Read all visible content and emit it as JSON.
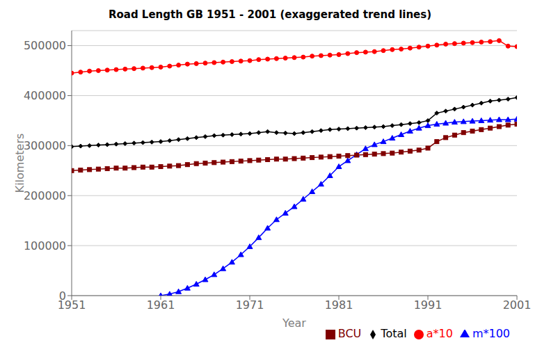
{
  "chart_data": {
    "type": "line",
    "title": "Road Length GB 1951 - 2001 (exaggerated trend lines)",
    "xlabel": "Year",
    "ylabel": "Kilometers",
    "x": [
      1951,
      1952,
      1953,
      1954,
      1955,
      1956,
      1957,
      1958,
      1959,
      1960,
      1961,
      1962,
      1963,
      1964,
      1965,
      1966,
      1967,
      1968,
      1969,
      1970,
      1971,
      1972,
      1973,
      1974,
      1975,
      1976,
      1977,
      1978,
      1979,
      1980,
      1981,
      1982,
      1983,
      1984,
      1985,
      1986,
      1987,
      1988,
      1989,
      1990,
      1991,
      1992,
      1993,
      1994,
      1995,
      1996,
      1997,
      1998,
      1999,
      2000,
      2001
    ],
    "series": [
      {
        "name": "Total",
        "color": "#000000",
        "marker": "diamond",
        "values": [
          298000,
          299000,
          300000,
          301000,
          302000,
          303000,
          304000,
          305000,
          306000,
          307000,
          308000,
          310000,
          312000,
          314000,
          316000,
          318000,
          320000,
          321000,
          322000,
          323000,
          324000,
          326000,
          328000,
          326000,
          325000,
          324000,
          326000,
          328000,
          330000,
          332000,
          333000,
          334000,
          335000,
          336000,
          337000,
          338000,
          340000,
          342000,
          344000,
          346000,
          350000,
          365000,
          369000,
          373000,
          377000,
          381000,
          385000,
          389000,
          391000,
          393000,
          396000
        ]
      },
      {
        "name": "a*10",
        "color": "#FF0000",
        "marker": "circle",
        "values": [
          445000,
          447000,
          449000,
          450000,
          451000,
          452000,
          453000,
          454000,
          455000,
          456000,
          457000,
          459000,
          461000,
          463000,
          464000,
          465000,
          466000,
          467000,
          468000,
          469000,
          470000,
          472000,
          473000,
          474000,
          475000,
          476000,
          477000,
          479000,
          480000,
          481000,
          482000,
          484000,
          486000,
          487000,
          488000,
          490000,
          492000,
          493000,
          495000,
          497000,
          499000,
          501000,
          503000,
          504000,
          505000,
          506000,
          507000,
          508000,
          510000,
          499000,
          498000
        ]
      },
      {
        "name": "m*100",
        "color": "#0000FF",
        "marker": "triangle",
        "values": [
          null,
          null,
          null,
          null,
          null,
          null,
          null,
          null,
          null,
          null,
          0,
          3000,
          8000,
          15000,
          23000,
          32000,
          42000,
          54000,
          67000,
          82000,
          98000,
          116000,
          135000,
          152000,
          165000,
          178000,
          193000,
          208000,
          223000,
          240000,
          258000,
          270000,
          282000,
          294000,
          302000,
          308000,
          315000,
          322000,
          329000,
          335000,
          340000,
          343000,
          345000,
          347000,
          348000,
          349000,
          350000,
          351000,
          352000,
          352000,
          353000
        ]
      },
      {
        "name": "BCU",
        "color": "#800000",
        "marker": "square",
        "values": [
          250000,
          251000,
          252000,
          253000,
          254000,
          255000,
          255000,
          256000,
          257000,
          257000,
          258000,
          259000,
          260000,
          262000,
          264000,
          265000,
          266000,
          267000,
          268000,
          269000,
          270000,
          271000,
          272000,
          273000,
          273000,
          274000,
          275000,
          276000,
          277000,
          278000,
          279000,
          280000,
          281000,
          282000,
          283000,
          284000,
          285000,
          287000,
          289000,
          291000,
          295000,
          308000,
          316000,
          321000,
          326000,
          329000,
          332000,
          335000,
          338000,
          341000,
          343000
        ]
      }
    ],
    "xlim": [
      1951,
      2001
    ],
    "ylim": [
      0,
      530000
    ],
    "xticks": [
      1951,
      1961,
      1971,
      1981,
      1991,
      2001
    ],
    "yticks": [
      0,
      100000,
      200000,
      300000,
      400000,
      500000
    ],
    "grid": "y",
    "legend": "lower right"
  }
}
